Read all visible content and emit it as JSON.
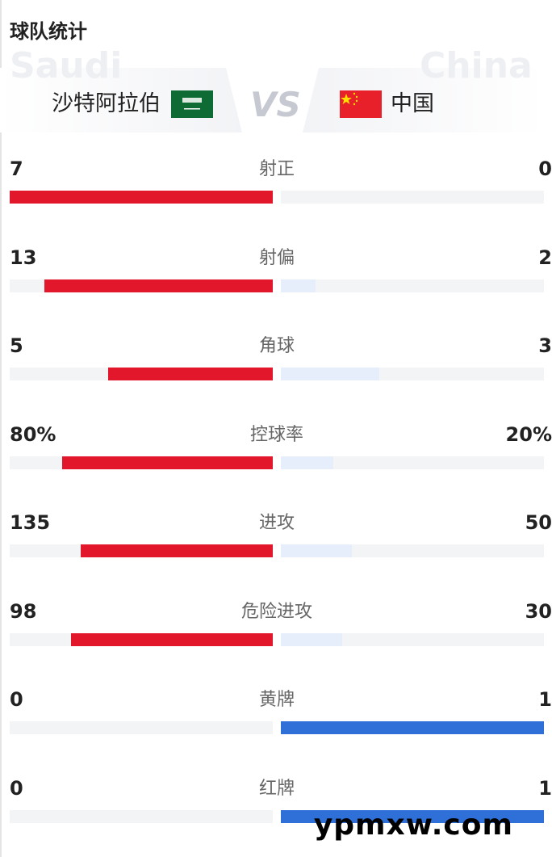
{
  "title": "球队统计",
  "header": {
    "home_ghost": "Saudi",
    "home_name": "沙特阿拉伯",
    "vs": "VS",
    "away_name": "中国",
    "away_ghost": "China"
  },
  "colors": {
    "home": "#e3172b",
    "away_strong": "#2e6fd8",
    "away_light": "#e6eefb",
    "track": "#f3f4f6"
  },
  "stats": [
    {
      "label": "射正",
      "home": "7",
      "away": "0",
      "home_value": 7,
      "away_value": 0
    },
    {
      "label": "射偏",
      "home": "13",
      "away": "2",
      "home_value": 13,
      "away_value": 2
    },
    {
      "label": "角球",
      "home": "5",
      "away": "3",
      "home_value": 5,
      "away_value": 3
    },
    {
      "label": "控球率",
      "home": "80%",
      "away": "20%",
      "home_value": 80,
      "away_value": 20
    },
    {
      "label": "进攻",
      "home": "135",
      "away": "50",
      "home_value": 135,
      "away_value": 50
    },
    {
      "label": "危险进攻",
      "home": "98",
      "away": "30",
      "home_value": 98,
      "away_value": 30
    },
    {
      "label": "黄牌",
      "home": "0",
      "away": "1",
      "home_value": 0,
      "away_value": 1
    },
    {
      "label": "红牌",
      "home": "0",
      "away": "1",
      "home_value": 0,
      "away_value": 1
    }
  ],
  "watermark": "ypmxw.com"
}
